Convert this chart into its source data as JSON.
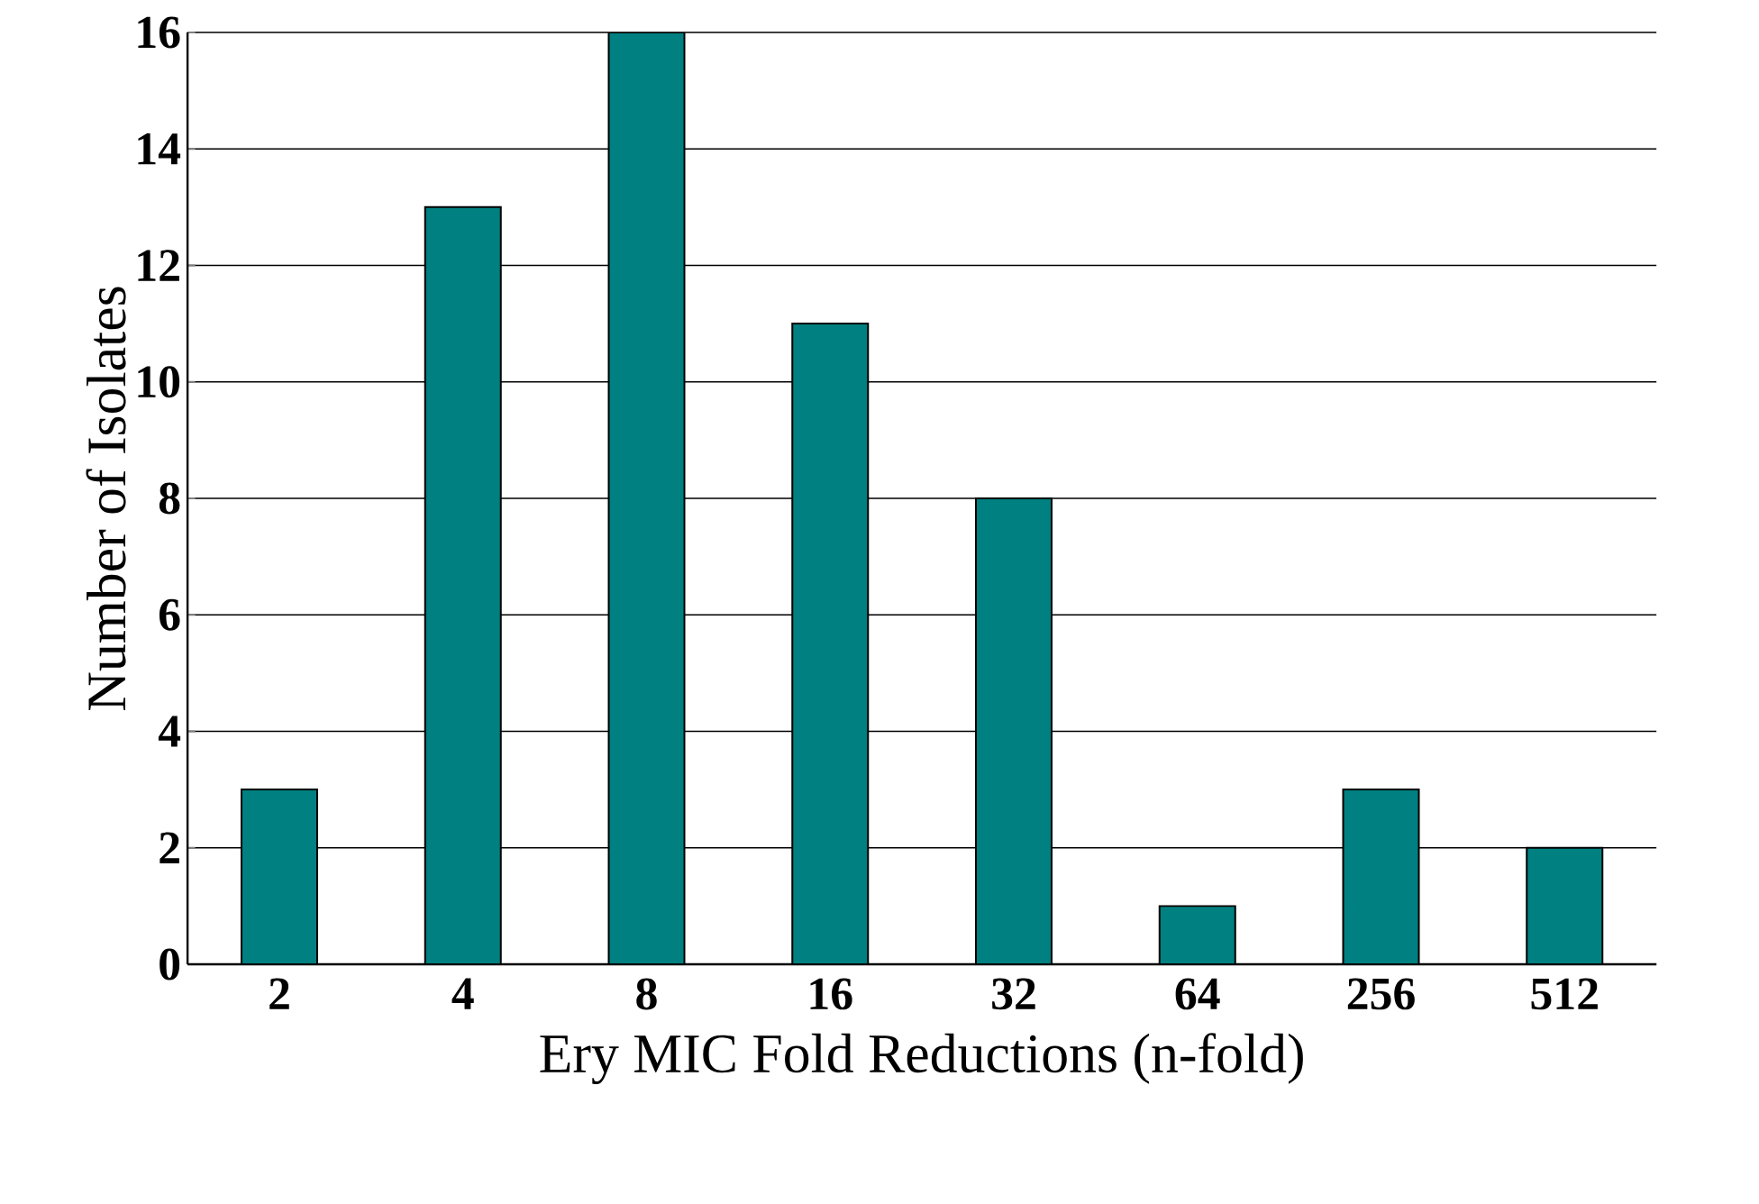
{
  "chart_data": {
    "type": "bar",
    "xlabel": "Ery MIC Fold Reductions (n-fold)",
    "ylabel": "Number of Isolates",
    "categories": [
      "2",
      "4",
      "8",
      "16",
      "32",
      "64",
      "256",
      "512"
    ],
    "values": [
      3,
      13,
      16,
      11,
      8,
      1,
      3,
      2
    ],
    "color": "#008080",
    "ylim": [
      0,
      16
    ],
    "yticks": [
      0,
      2,
      4,
      6,
      8,
      10,
      12,
      14,
      16
    ],
    "grid": "y"
  }
}
